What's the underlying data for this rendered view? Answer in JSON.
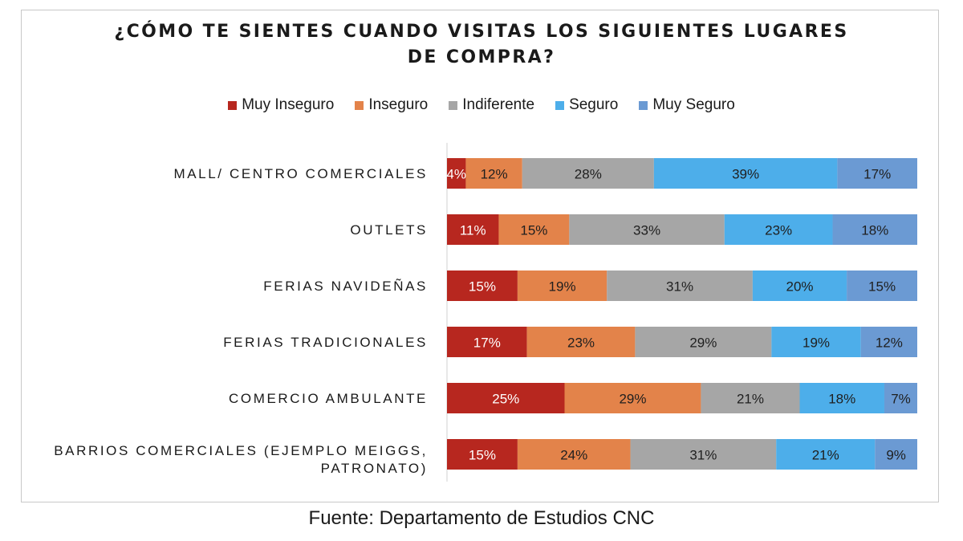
{
  "title_line1": "¿CÓMO TE SIENTES CUANDO VISITAS LOS SIGUIENTES LUGARES",
  "title_line2": "DE COMPRA?",
  "source": "Fuente: Departamento de Estudios CNC",
  "chart_data": {
    "type": "bar",
    "orientation": "horizontal",
    "stacked": "100%",
    "title": "¿CÓMO TE SIENTES CUANDO VISITAS LOS SIGUIENTES LUGARES DE COMPRA?",
    "legend_position": "top",
    "grid": false,
    "xlim": [
      0,
      100
    ],
    "categories": [
      [
        "MALL/ CENTRO COMERCIALES"
      ],
      [
        "OUTLETS"
      ],
      [
        "FERIAS NAVIDEÑAS"
      ],
      [
        "FERIAS TRADICIONALES"
      ],
      [
        "COMERCIO AMBULANTE"
      ],
      [
        "BARRIOS COMERCIALES (EJEMPLO MEIGGS,",
        "PATRONATO)"
      ]
    ],
    "series": [
      {
        "name": "Muy Inseguro",
        "color": "#b7271f",
        "values": [
          4,
          11,
          15,
          17,
          25,
          15
        ]
      },
      {
        "name": "Inseguro",
        "color": "#e3834a",
        "values": [
          12,
          15,
          19,
          23,
          29,
          24
        ]
      },
      {
        "name": "Indiferente",
        "color": "#a6a6a6",
        "values": [
          28,
          33,
          31,
          29,
          21,
          31
        ]
      },
      {
        "name": "Seguro",
        "color": "#4daeea",
        "values": [
          39,
          23,
          20,
          19,
          18,
          21
        ]
      },
      {
        "name": "Muy Seguro",
        "color": "#6b9ad3",
        "values": [
          17,
          18,
          15,
          12,
          7,
          9
        ]
      }
    ]
  }
}
